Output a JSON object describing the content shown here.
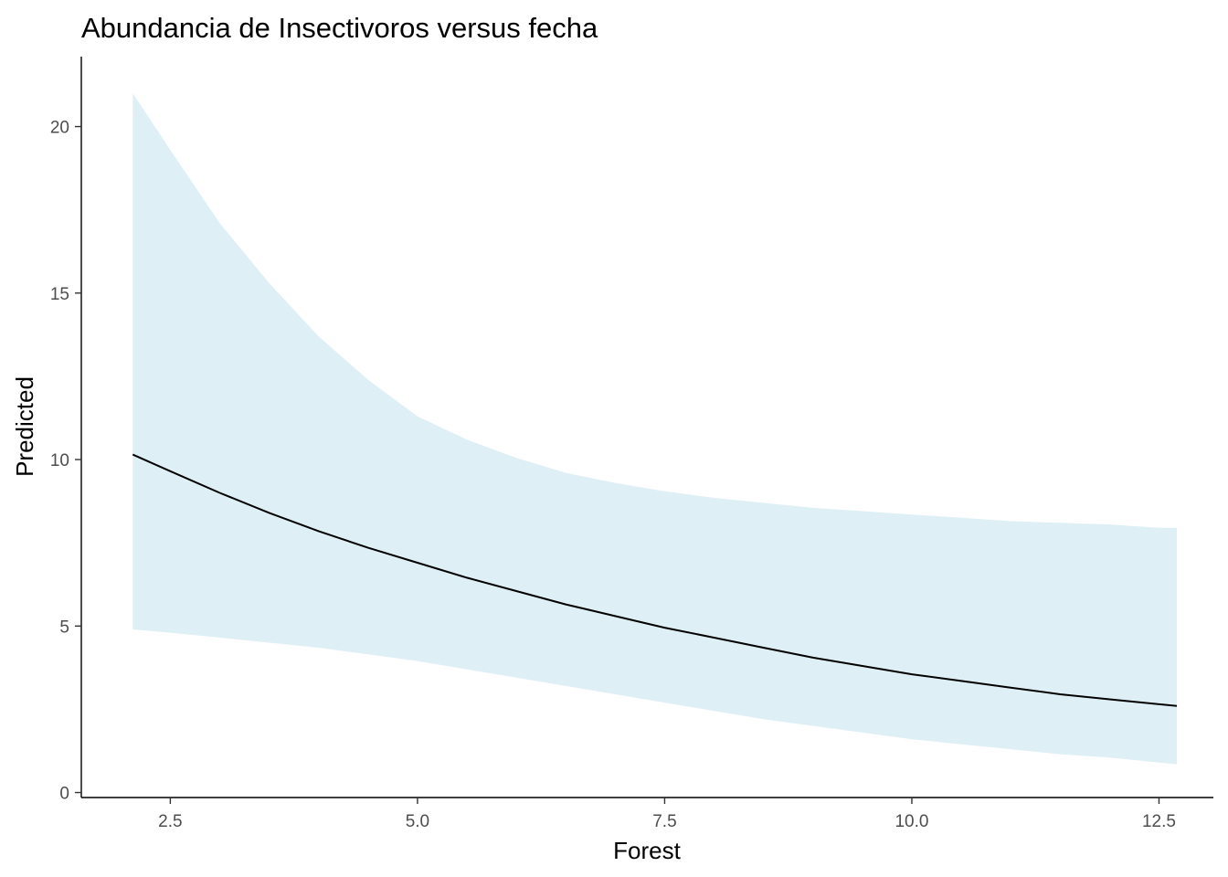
{
  "chart_data": {
    "type": "line",
    "title": "Abundancia de Insectivoros versus fecha",
    "xlabel": "Forest",
    "ylabel": "Predicted",
    "xlim": [
      1.6,
      13.05
    ],
    "ylim": [
      -0.15,
      22.1
    ],
    "x_ticks": [
      2.5,
      5.0,
      7.5,
      10.0,
      12.5
    ],
    "x_tick_labels": [
      "2.5",
      "5.0",
      "7.5",
      "10.0",
      "12.5"
    ],
    "y_ticks": [
      0,
      5,
      10,
      15,
      20
    ],
    "y_tick_labels": [
      "0",
      "5",
      "10",
      "15",
      "20"
    ],
    "grid": false,
    "legend": "none",
    "colors": {
      "line": "#000000",
      "ribbon": "#dfeff6",
      "axis": "#000000"
    },
    "series": [
      {
        "x": [
          2.12,
          2.5,
          3.0,
          3.5,
          4.0,
          4.5,
          5.0,
          5.5,
          6.0,
          6.5,
          7.0,
          7.5,
          8.0,
          8.5,
          9.0,
          9.5,
          10.0,
          10.5,
          11.0,
          11.5,
          12.0,
          12.5,
          12.68
        ],
        "y": [
          10.15,
          9.65,
          9.0,
          8.4,
          7.85,
          7.35,
          6.9,
          6.45,
          6.05,
          5.65,
          5.3,
          4.95,
          4.65,
          4.35,
          4.05,
          3.8,
          3.55,
          3.35,
          3.15,
          2.95,
          2.8,
          2.65,
          2.6
        ],
        "lower": [
          4.9,
          4.8,
          4.65,
          4.5,
          4.35,
          4.15,
          3.95,
          3.7,
          3.45,
          3.2,
          2.95,
          2.7,
          2.45,
          2.2,
          2.0,
          1.8,
          1.6,
          1.45,
          1.3,
          1.15,
          1.05,
          0.9,
          0.85
        ],
        "upper": [
          21.0,
          19.3,
          17.1,
          15.3,
          13.7,
          12.4,
          11.3,
          10.6,
          10.05,
          9.6,
          9.3,
          9.05,
          8.85,
          8.7,
          8.55,
          8.45,
          8.35,
          8.25,
          8.15,
          8.1,
          8.05,
          7.95,
          7.95
        ]
      }
    ]
  }
}
